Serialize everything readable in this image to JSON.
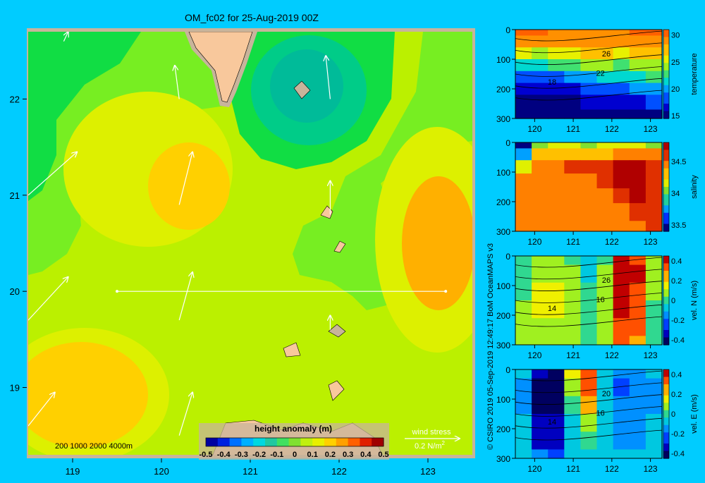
{
  "title": "OM_fc02 for 25-Aug-2019 00Z",
  "credit": "© CSIRO 2019  05-Sep-2019 12:49:17 BoM OceanMAPS v3",
  "colors": {
    "background": "#00ccff",
    "frame": "#c8b49b",
    "land": "#f8c89c",
    "land_shelf": "#c8b49b",
    "section_line": "#ffffff",
    "arrow": "#ffffff"
  },
  "chart_data": [
    {
      "id": "map",
      "type": "heatmap",
      "xlim": [
        118.5,
        123.5
      ],
      "ylim": [
        18.3,
        22.7
      ],
      "x_ticks": [
        "119",
        "120",
        "121",
        "122",
        "123"
      ],
      "y_ticks": [
        "19",
        "20",
        "21",
        "22"
      ],
      "depth_legend": "200  1000  2000  4000m",
      "colorbar": {
        "title": "height anomaly (m)",
        "ticks": [
          "-0.5",
          "-0.4",
          "-0.3",
          "-0.2",
          "-0.1",
          "0",
          "0.1",
          "0.2",
          "0.3",
          "0.4",
          "0.5"
        ],
        "colors": [
          "#0000a0",
          "#0020e0",
          "#0070ff",
          "#00b0ff",
          "#00d8e0",
          "#20c8a0",
          "#40e060",
          "#80e030",
          "#c0f010",
          "#e8f000",
          "#ffd000",
          "#ffa000",
          "#ff6000",
          "#e02000",
          "#a00000"
        ]
      },
      "field_colors": {
        "m0.2": "#00bb99",
        "m0.15": "#00cc88",
        "m0.1": "#11dd44",
        "m0.05": "#77ee22",
        "z0": "#bbf000",
        "p0.05": "#ddf000",
        "p0.1": "#ffd000",
        "p0.15": "#ffb000"
      },
      "wind_stress": {
        "label": "wind stress",
        "scale": "0.2 N/m",
        "exponent": "2"
      },
      "section_line": {
        "x0": 119.5,
        "x1": 123.2,
        "y": 20.0
      },
      "wind_vectors": [
        {
          "x": 118.5,
          "y": 21.0,
          "u": 0.55,
          "v": 0.45
        },
        {
          "x": 118.5,
          "y": 19.7,
          "u": 0.45,
          "v": 0.45
        },
        {
          "x": 118.5,
          "y": 18.6,
          "u": 0.3,
          "v": 0.35
        },
        {
          "x": 120.2,
          "y": 20.9,
          "u": 0.15,
          "v": 0.55
        },
        {
          "x": 120.2,
          "y": 19.7,
          "u": 0.15,
          "v": 0.5
        },
        {
          "x": 120.2,
          "y": 18.5,
          "u": 0.15,
          "v": 0.45
        },
        {
          "x": 121.9,
          "y": 22.0,
          "u": -0.05,
          "v": 0.45
        },
        {
          "x": 121.9,
          "y": 20.8,
          "u": 0.0,
          "v": 0.35
        },
        {
          "x": 121.9,
          "y": 19.6,
          "u": 0.0,
          "v": 0.15
        },
        {
          "x": 118.9,
          "y": 22.6,
          "u": 0.05,
          "v": 0.1
        },
        {
          "x": 120.2,
          "y": 22.0,
          "u": -0.05,
          "v": 0.35
        }
      ]
    },
    {
      "id": "temperature",
      "type": "heatmap",
      "xlim": [
        119.5,
        123.3
      ],
      "ylim": [
        300,
        0
      ],
      "x_ticks": [
        "120",
        "121",
        "122",
        "123"
      ],
      "y_ticks": [
        "0",
        "100",
        "200",
        "300"
      ],
      "colorbar_label": "temperature",
      "colorbar_ticks": [
        "30",
        "25",
        "20",
        "15"
      ],
      "colorbar_range": [
        14.5,
        31
      ],
      "contour_labels": [
        "26",
        "22",
        "18"
      ],
      "rows": [
        {
          "depth": 0,
          "values": [
            29.5,
            29.5,
            29.0,
            29.0,
            29.0,
            29.0,
            29.0,
            29.5,
            29.5
          ]
        },
        {
          "depth": 40,
          "values": [
            28.5,
            28.5,
            28.0,
            28.5,
            28.5,
            28.5,
            28.0,
            28.5,
            29.0
          ]
        },
        {
          "depth": 80,
          "values": [
            25.0,
            24.0,
            25.0,
            26.0,
            26.5,
            26.5,
            26.0,
            26.5,
            27.0
          ]
        },
        {
          "depth": 120,
          "values": [
            21.0,
            21.0,
            22.0,
            22.5,
            23.5,
            23.5,
            23.0,
            24.0,
            24.5
          ]
        },
        {
          "depth": 160,
          "values": [
            18.0,
            18.0,
            18.5,
            19.5,
            20.0,
            20.5,
            20.5,
            21.5,
            22.0
          ]
        },
        {
          "depth": 200,
          "values": [
            16.5,
            16.0,
            16.0,
            17.0,
            17.5,
            18.0,
            18.0,
            19.5,
            20.0
          ]
        },
        {
          "depth": 240,
          "values": [
            15.5,
            15.0,
            15.0,
            15.5,
            16.0,
            16.5,
            16.0,
            17.0,
            17.5
          ]
        },
        {
          "depth": 300,
          "values": [
            15.0,
            14.5,
            14.5,
            15.0,
            15.0,
            15.0,
            15.0,
            15.5,
            15.5
          ]
        }
      ]
    },
    {
      "id": "salinity",
      "type": "heatmap",
      "xlim": [
        119.5,
        123.3
      ],
      "ylim": [
        300,
        0
      ],
      "x_ticks": [
        "120",
        "121",
        "122",
        "123"
      ],
      "y_ticks": [
        "0",
        "100",
        "200",
        "300"
      ],
      "colorbar_label": "salinity",
      "colorbar_ticks": [
        "34.5",
        "34",
        "33.5"
      ],
      "colorbar_range": [
        33.4,
        34.8
      ],
      "rows": [
        {
          "depth": 0,
          "values": [
            33.5,
            34.0,
            34.1,
            34.1,
            34.0,
            34.1,
            34.1,
            34.1,
            34.0
          ]
        },
        {
          "depth": 40,
          "values": [
            33.7,
            34.3,
            34.3,
            34.3,
            34.3,
            34.3,
            34.4,
            34.5,
            34.5
          ]
        },
        {
          "depth": 80,
          "values": [
            34.2,
            34.5,
            34.5,
            34.6,
            34.6,
            34.6,
            34.7,
            34.7,
            34.6
          ]
        },
        {
          "depth": 130,
          "values": [
            34.4,
            34.5,
            34.5,
            34.5,
            34.5,
            34.6,
            34.7,
            34.7,
            34.6
          ]
        },
        {
          "depth": 180,
          "values": [
            34.4,
            34.5,
            34.5,
            34.5,
            34.5,
            34.5,
            34.6,
            34.7,
            34.6
          ]
        },
        {
          "depth": 230,
          "values": [
            34.4,
            34.4,
            34.4,
            34.4,
            34.4,
            34.5,
            34.5,
            34.6,
            34.6
          ]
        },
        {
          "depth": 300,
          "values": [
            34.4,
            34.4,
            34.4,
            34.4,
            34.4,
            34.5,
            34.5,
            34.5,
            34.6
          ]
        }
      ]
    },
    {
      "id": "velocity-north",
      "type": "heatmap",
      "xlim": [
        119.5,
        123.3
      ],
      "ylim": [
        300,
        0
      ],
      "x_ticks": [
        "120",
        "121",
        "122",
        "123"
      ],
      "y_ticks": [
        "0",
        "100",
        "200",
        "300"
      ],
      "colorbar_label": "vel. N (m/s)",
      "colorbar_ticks": [
        "0.4",
        "0.2",
        "0",
        "-0.2",
        "-0.4"
      ],
      "colorbar_range": [
        -0.45,
        0.45
      ],
      "contour_labels": [
        "26",
        "16",
        "14"
      ],
      "rows": [
        {
          "depth": 0,
          "values": [
            0.0,
            0.05,
            0.05,
            0.0,
            -0.1,
            0.0,
            0.45,
            0.35,
            0.1
          ]
        },
        {
          "depth": 60,
          "values": [
            0.0,
            0.1,
            0.1,
            0.05,
            -0.05,
            0.05,
            0.45,
            0.4,
            0.05
          ]
        },
        {
          "depth": 120,
          "values": [
            0.0,
            0.15,
            0.2,
            0.1,
            0.0,
            0.1,
            0.4,
            0.35,
            0.05
          ]
        },
        {
          "depth": 180,
          "values": [
            0.05,
            0.15,
            0.15,
            0.1,
            0.0,
            0.1,
            0.4,
            0.3,
            0.0
          ]
        },
        {
          "depth": 240,
          "values": [
            0.05,
            0.1,
            0.1,
            0.05,
            0.0,
            0.05,
            0.35,
            0.3,
            0.0
          ]
        },
        {
          "depth": 300,
          "values": [
            0.05,
            0.05,
            0.05,
            0.05,
            0.0,
            0.05,
            0.3,
            0.25,
            0.0
          ]
        }
      ]
    },
    {
      "id": "velocity-east",
      "type": "heatmap",
      "xlim": [
        119.5,
        123.3
      ],
      "ylim": [
        300,
        0
      ],
      "x_ticks": [
        "120",
        "121",
        "122",
        "123"
      ],
      "y_ticks": [
        "0",
        "100",
        "200",
        "300"
      ],
      "colorbar_label": "vel. E (m/s)",
      "colorbar_ticks": [
        "0.4",
        "0.2",
        "0",
        "-0.2",
        "-0.4"
      ],
      "colorbar_range": [
        -0.45,
        0.45
      ],
      "contour_labels": [
        "20",
        "16",
        "14"
      ],
      "rows": [
        {
          "depth": 0,
          "values": [
            -0.1,
            -0.3,
            -0.4,
            0.2,
            0.3,
            -0.1,
            -0.2,
            -0.15,
            -0.1
          ]
        },
        {
          "depth": 60,
          "values": [
            -0.15,
            -0.4,
            -0.45,
            0.1,
            0.3,
            -0.1,
            -0.25,
            -0.2,
            -0.15
          ]
        },
        {
          "depth": 120,
          "values": [
            -0.15,
            -0.4,
            -0.4,
            0.0,
            0.25,
            -0.05,
            -0.2,
            -0.2,
            -0.15
          ]
        },
        {
          "depth": 180,
          "values": [
            -0.1,
            -0.35,
            -0.35,
            -0.05,
            0.1,
            -0.05,
            -0.15,
            -0.15,
            -0.1
          ]
        },
        {
          "depth": 240,
          "values": [
            -0.1,
            -0.3,
            -0.3,
            -0.1,
            0.0,
            -0.05,
            -0.15,
            -0.15,
            -0.1
          ]
        },
        {
          "depth": 300,
          "values": [
            -0.1,
            -0.2,
            -0.25,
            -0.1,
            -0.05,
            -0.05,
            -0.1,
            -0.1,
            -0.1
          ]
        }
      ]
    }
  ]
}
